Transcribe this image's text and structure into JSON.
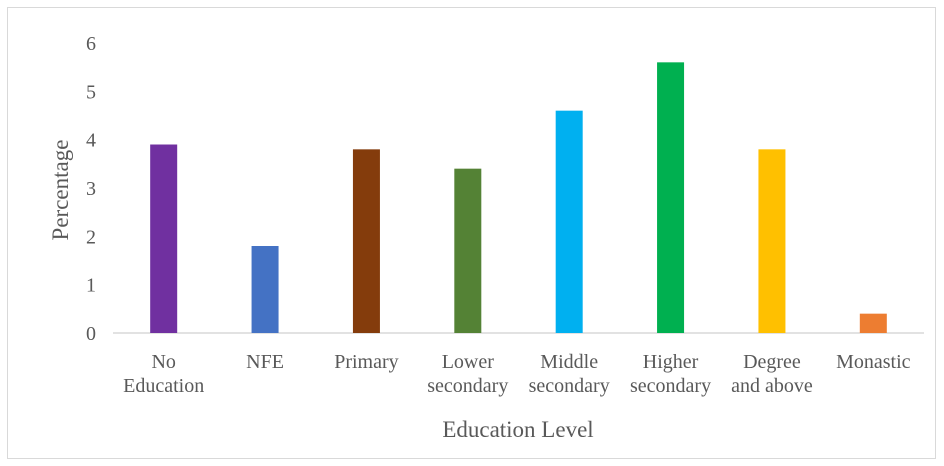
{
  "chart_data": {
    "type": "bar",
    "title": "",
    "xlabel": "Education Level",
    "ylabel": "Percentage",
    "ylim": [
      0,
      6
    ],
    "yticks": [
      "0",
      "1",
      "2",
      "3",
      "4",
      "5",
      "6"
    ],
    "grid": false,
    "categories": [
      [
        "No",
        "Education"
      ],
      [
        "NFE"
      ],
      [
        "Primary"
      ],
      [
        "Lower",
        "secondary"
      ],
      [
        "Middle",
        "secondary"
      ],
      [
        "Higher",
        "secondary"
      ],
      [
        "Degree",
        "and above"
      ],
      [
        "Monastic"
      ]
    ],
    "values": [
      3.9,
      1.8,
      3.8,
      3.4,
      4.6,
      5.6,
      3.8,
      0.4
    ],
    "colors": [
      "#7030a0",
      "#4472c4",
      "#843c0c",
      "#548235",
      "#00b0f0",
      "#00b050",
      "#ffc000",
      "#ed7d31"
    ]
  }
}
